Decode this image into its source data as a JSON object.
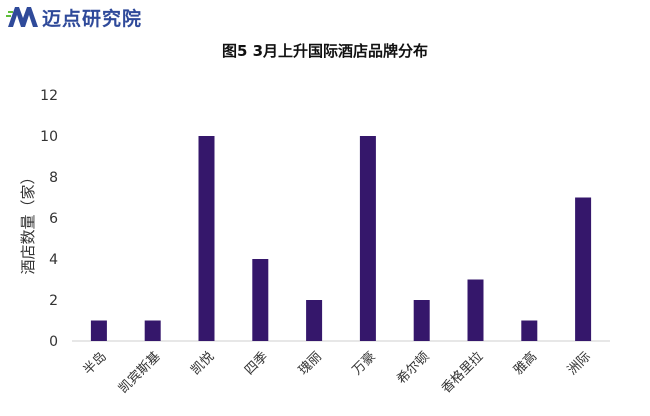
{
  "logo": {
    "mark": "M",
    "text": "迈点研究院",
    "color": "#2f4a9a",
    "accent": "#5fbf3a"
  },
  "chart_data": {
    "type": "bar",
    "title": "图5 3月上升国际酒店品牌分布",
    "ylabel": "酒店数量（家）",
    "xlabel": "",
    "categories": [
      "半岛",
      "凯宾斯基",
      "凯悦",
      "四季",
      "瑰丽",
      "万豪",
      "希尔顿",
      "香格里拉",
      "雅高",
      "洲际"
    ],
    "values": [
      1,
      1,
      10,
      4,
      2,
      10,
      2,
      3,
      1,
      7
    ],
    "ylim": [
      0,
      12
    ],
    "yticks": [
      0,
      2,
      4,
      6,
      8,
      10,
      12
    ],
    "grid": false,
    "legend": "none",
    "bar_color": "#35176b"
  }
}
